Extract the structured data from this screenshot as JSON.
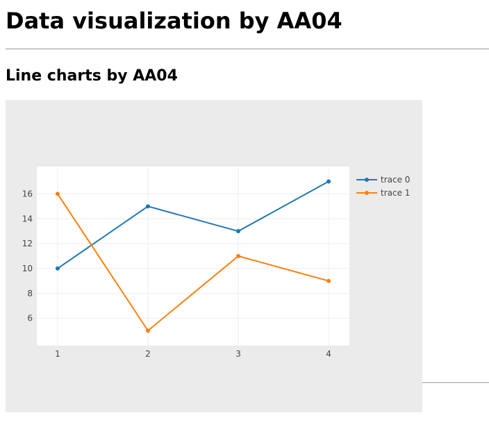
{
  "page": {
    "title": "Data visualization by AA04",
    "section_title": "Line charts by AA04"
  },
  "chart_data": {
    "type": "line",
    "x": [
      1,
      2,
      3,
      4
    ],
    "series": [
      {
        "name": "trace 0",
        "values": [
          10,
          15,
          13,
          17
        ],
        "color": "#1f77b4"
      },
      {
        "name": "trace 1",
        "values": [
          16,
          5,
          11,
          9
        ],
        "color": "#ff7f0e"
      }
    ],
    "xticks": [
      1,
      2,
      3,
      4
    ],
    "yticks": [
      6,
      8,
      10,
      12,
      14,
      16
    ],
    "xlim": [
      0.77,
      4.23
    ],
    "ylim": [
      3.8,
      18.2
    ],
    "grid": true,
    "legend_position": "top-right",
    "colors": {
      "paper": "#ebebeb",
      "plot": "#ffffff",
      "grid": "#eeeeee"
    }
  }
}
